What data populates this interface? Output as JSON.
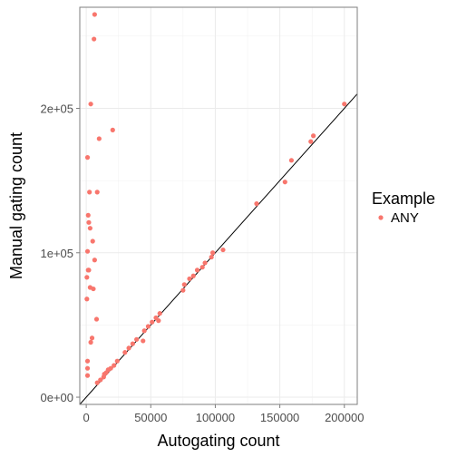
{
  "chart_data": {
    "type": "scatter",
    "xlabel": "Autogating count",
    "ylabel": "Manual gating count",
    "xlim": [
      -5000,
      210000
    ],
    "ylim": [
      -5000,
      270000
    ],
    "x_ticks": [
      {
        "value": 0,
        "label": "0"
      },
      {
        "value": 50000,
        "label": "50000"
      },
      {
        "value": 100000,
        "label": "100000"
      },
      {
        "value": 150000,
        "label": "150000"
      },
      {
        "value": 200000,
        "label": "200000"
      }
    ],
    "y_ticks": [
      {
        "value": 0,
        "label": "0e+00"
      },
      {
        "value": 100000,
        "label": "1e+05"
      },
      {
        "value": 200000,
        "label": "2e+05"
      }
    ],
    "grid": true,
    "legend": {
      "title": "Example",
      "placement": "right",
      "entries": [
        {
          "label": "ANY",
          "color": "#F8766D"
        }
      ]
    },
    "reference_line": {
      "type": "identity",
      "slope": 1,
      "intercept": 0,
      "color": "#000000"
    },
    "series": [
      {
        "name": "ANY",
        "color": "#F8766D",
        "points": [
          [
            6500,
            265000
          ],
          [
            6000,
            248000
          ],
          [
            3500,
            203000
          ],
          [
            20500,
            185000
          ],
          [
            10000,
            179000
          ],
          [
            1000,
            166000
          ],
          [
            2500,
            142000
          ],
          [
            8500,
            142000
          ],
          [
            1500,
            126000
          ],
          [
            2000,
            121000
          ],
          [
            3000,
            117000
          ],
          [
            5000,
            108000
          ],
          [
            1000,
            101000
          ],
          [
            6500,
            95000
          ],
          [
            2000,
            88000
          ],
          [
            1500,
            88000
          ],
          [
            500,
            83000
          ],
          [
            3000,
            76000
          ],
          [
            5500,
            75000
          ],
          [
            500,
            68000
          ],
          [
            8000,
            54000
          ],
          [
            4500,
            41000
          ],
          [
            3500,
            38000
          ],
          [
            1000,
            25000
          ],
          [
            1000,
            20000
          ],
          [
            1000,
            15000
          ],
          [
            8500,
            10000
          ],
          [
            11000,
            12000
          ],
          [
            13500,
            14000
          ],
          [
            14000,
            16000
          ],
          [
            15500,
            17000
          ],
          [
            17000,
            19000
          ],
          [
            19000,
            20000
          ],
          [
            21500,
            22000
          ],
          [
            24000,
            25000
          ],
          [
            30000,
            31000
          ],
          [
            33000,
            34000
          ],
          [
            36000,
            37000
          ],
          [
            39000,
            40000
          ],
          [
            44000,
            39000
          ],
          [
            45000,
            46000
          ],
          [
            48000,
            49000
          ],
          [
            51000,
            52000
          ],
          [
            54000,
            55000
          ],
          [
            57000,
            58000
          ],
          [
            56000,
            53000
          ],
          [
            75000,
            74000
          ],
          [
            76000,
            78000
          ],
          [
            80000,
            82000
          ],
          [
            83000,
            84000
          ],
          [
            86000,
            88000
          ],
          [
            90000,
            90000
          ],
          [
            92000,
            93000
          ],
          [
            97000,
            97000
          ],
          [
            98000,
            100000
          ],
          [
            106000,
            102000
          ],
          [
            132000,
            134000
          ],
          [
            154000,
            149000
          ],
          [
            159000,
            164000
          ],
          [
            174000,
            177000
          ],
          [
            176000,
            181000
          ],
          [
            200000,
            203000
          ]
        ]
      }
    ]
  }
}
